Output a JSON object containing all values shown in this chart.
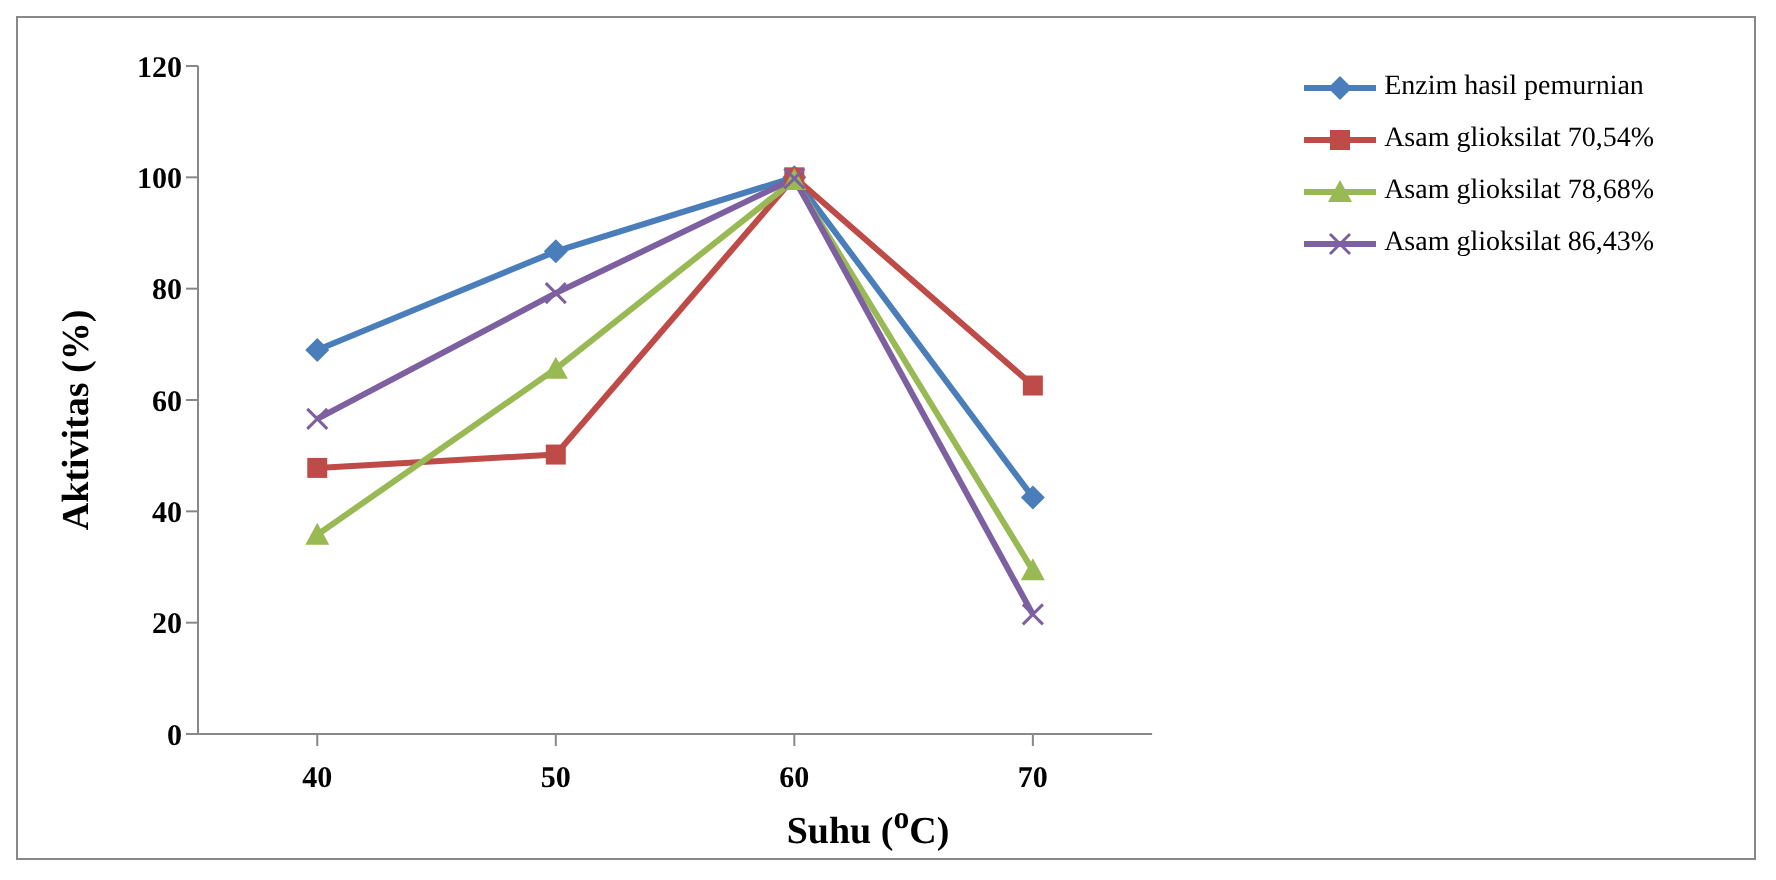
{
  "chart_data": {
    "type": "line",
    "xlabel": "Suhu ($^{o}$C)",
    "ylabel": "Aktivitas (%)",
    "categories": [
      "40",
      "50",
      "60",
      "70"
    ],
    "ylim": [
      0,
      120
    ],
    "yticks": [
      0,
      20,
      40,
      60,
      80,
      100,
      120
    ],
    "legend": "top right",
    "line_style": "solid",
    "series": [
      {
        "name": "Enzim hasil pemurnian",
        "color": "#4a7ebb",
        "marker": "diamond",
        "values": [
          69,
          86.7,
          100,
          42.5
        ]
      },
      {
        "name": "Asam glioksilat 70,54%",
        "color": "#be4b48",
        "marker": "square",
        "values": [
          47.8,
          50.2,
          100,
          62.6
        ]
      },
      {
        "name": "Asam glioksilat 78,68%",
        "color": "#98b954",
        "marker": "triangle",
        "values": [
          35.8,
          65.6,
          99.5,
          29.4
        ]
      },
      {
        "name": "Asam glioksilat 86,43%",
        "color": "#7d60a0",
        "marker": "cross",
        "values": [
          56.6,
          79.2,
          99.8,
          21.5
        ]
      }
    ]
  }
}
